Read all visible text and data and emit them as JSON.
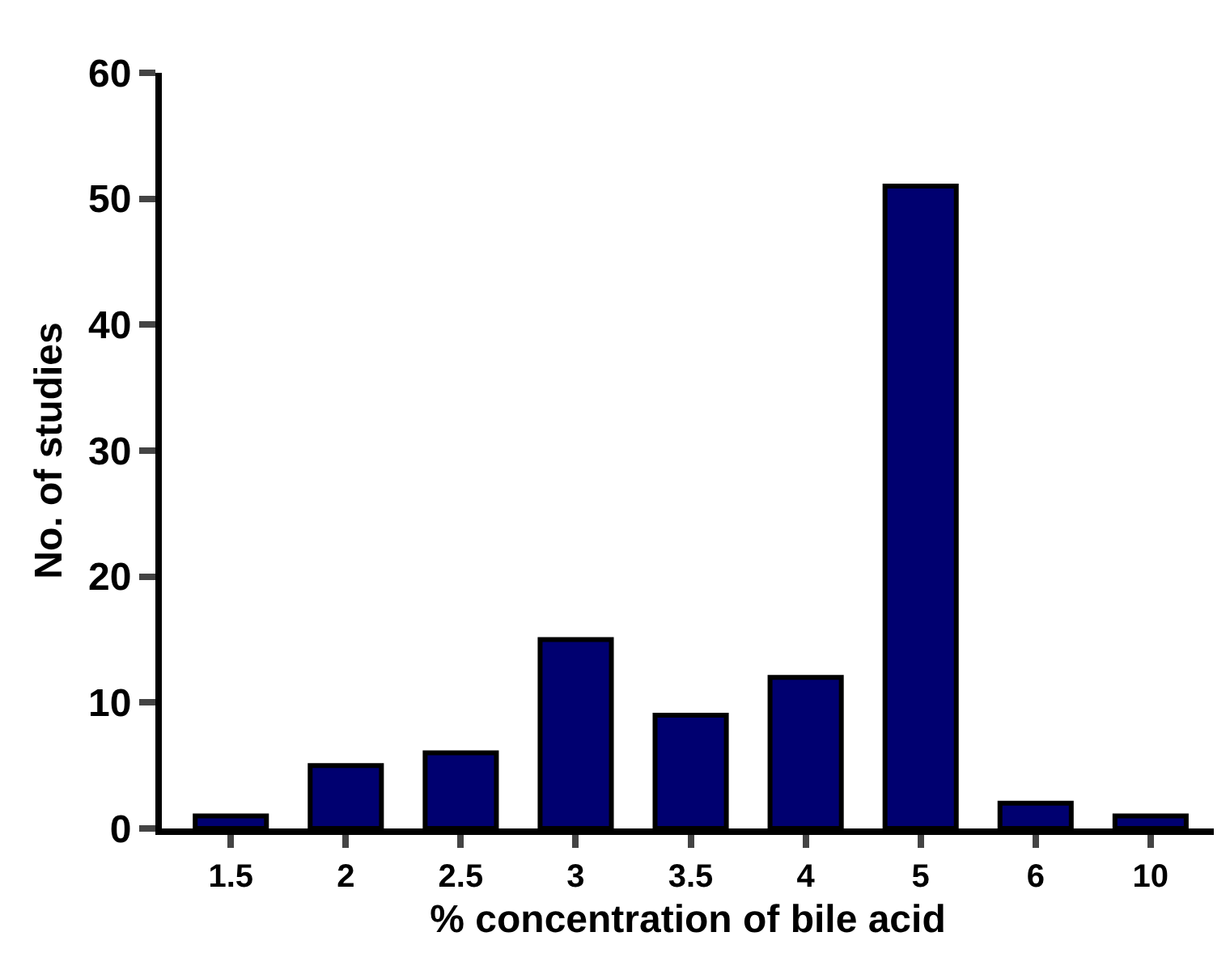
{
  "chart_data": {
    "type": "bar",
    "xlabel": "% concentration of bile acid",
    "ylabel": "No. of studies",
    "categories": [
      "1.5",
      "2",
      "2.5",
      "3",
      "3.5",
      "4",
      "5",
      "6",
      "10"
    ],
    "values": [
      1,
      5,
      6,
      15,
      9,
      12,
      51,
      2,
      1
    ],
    "color": "#000070",
    "ylim": [
      0,
      60
    ],
    "yticks": [
      0,
      10,
      20,
      30,
      40,
      50,
      60
    ],
    "grid": false,
    "legend": false
  }
}
